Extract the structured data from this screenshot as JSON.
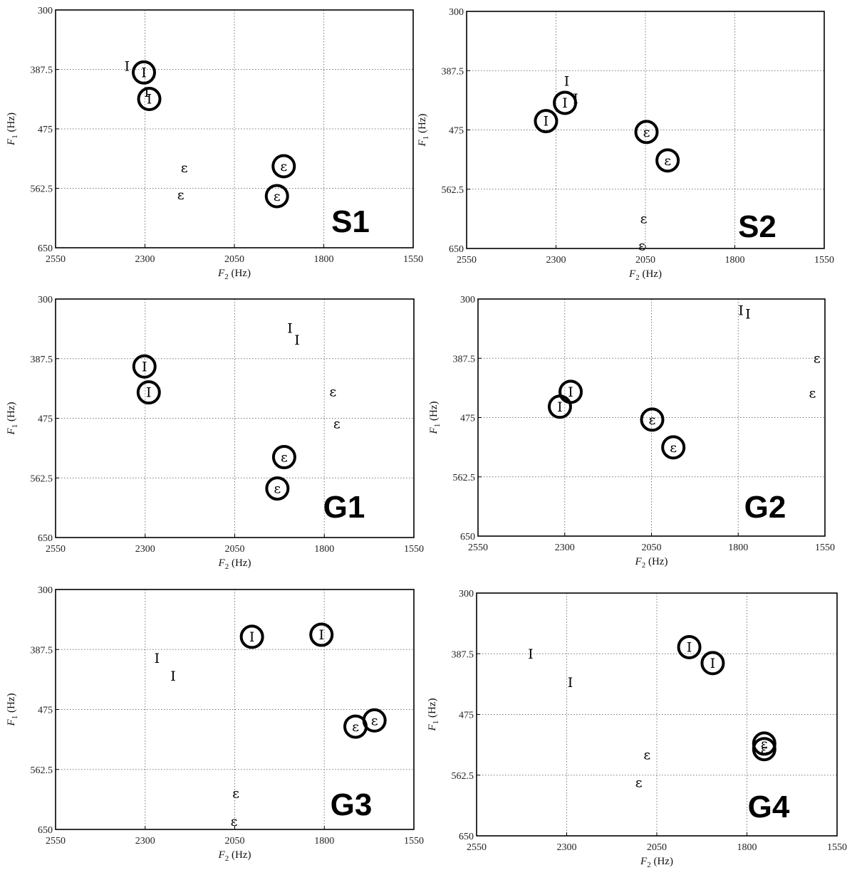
{
  "chart_data": [
    {
      "type": "scatter",
      "title": "S1",
      "xlabel": "F2 (Hz)",
      "ylabel": "F1 (Hz)",
      "xlim": [
        2550,
        1550
      ],
      "ylim": [
        650,
        300
      ],
      "xticks": [
        "2550",
        "2300",
        "2050",
        "1800",
        "1550"
      ],
      "yticks": [
        "300",
        "387.5",
        "475",
        "562.5",
        "650"
      ],
      "grid": true,
      "series": [
        {
          "symbol": "I",
          "circled": false,
          "points": [
            {
              "x": 2350,
              "y": 383
            },
            {
              "x": 2295,
              "y": 421
            }
          ]
        },
        {
          "symbol": "I",
          "circled": true,
          "points": [
            {
              "x": 2303,
              "y": 392
            },
            {
              "x": 2288,
              "y": 431
            }
          ]
        },
        {
          "symbol": "ε",
          "circled": false,
          "points": [
            {
              "x": 2190,
              "y": 532
            },
            {
              "x": 2200,
              "y": 572
            }
          ]
        },
        {
          "symbol": "ε",
          "circled": true,
          "points": [
            {
              "x": 1912,
              "y": 530
            },
            {
              "x": 1931,
              "y": 574
            }
          ]
        }
      ]
    },
    {
      "type": "scatter",
      "title": "S2",
      "xlabel": "F2 (Hz)",
      "ylabel": "F1 (Hz)",
      "xlim": [
        2550,
        1550
      ],
      "ylim": [
        650,
        300
      ],
      "xticks": [
        "2550",
        "2300",
        "2050",
        "1800",
        "1550"
      ],
      "yticks": [
        "300",
        "387.5",
        "475",
        "562.5",
        "650"
      ],
      "grid": true,
      "series": [
        {
          "symbol": "I",
          "circled": false,
          "points": [
            {
              "x": 2270,
              "y": 403
            },
            {
              "x": 2245,
              "y": 429
            }
          ]
        },
        {
          "symbol": "I",
          "circled": true,
          "points": [
            {
              "x": 2275,
              "y": 435
            },
            {
              "x": 2328,
              "y": 462
            }
          ]
        },
        {
          "symbol": "ε",
          "circled": false,
          "points": [
            {
              "x": 2055,
              "y": 606
            },
            {
              "x": 2060,
              "y": 646
            }
          ]
        },
        {
          "symbol": "ε",
          "circled": true,
          "points": [
            {
              "x": 2047,
              "y": 478
            },
            {
              "x": 1988,
              "y": 520
            }
          ]
        }
      ]
    },
    {
      "type": "scatter",
      "title": "G1",
      "xlabel": "F2 (Hz)",
      "ylabel": "F1 (Hz)",
      "xlim": [
        2550,
        1550
      ],
      "ylim": [
        650,
        300
      ],
      "xticks": [
        "2550",
        "2300",
        "2050",
        "1800",
        "1550"
      ],
      "yticks": [
        "300",
        "387.5",
        "475",
        "562.5",
        "650"
      ],
      "grid": true,
      "series": [
        {
          "symbol": "I",
          "circled": false,
          "points": [
            {
              "x": 1896,
              "y": 343
            },
            {
              "x": 1876,
              "y": 360
            }
          ]
        },
        {
          "symbol": "I",
          "circled": true,
          "points": [
            {
              "x": 2302,
              "y": 399
            },
            {
              "x": 2290,
              "y": 437
            }
          ]
        },
        {
          "symbol": "ε",
          "circled": false,
          "points": [
            {
              "x": 1776,
              "y": 436
            },
            {
              "x": 1765,
              "y": 483
            }
          ]
        },
        {
          "symbol": "ε",
          "circled": true,
          "points": [
            {
              "x": 1912,
              "y": 532
            },
            {
              "x": 1931,
              "y": 578
            }
          ]
        }
      ]
    },
    {
      "type": "scatter",
      "title": "G2",
      "xlabel": "F2 (Hz)",
      "ylabel": "F1 (Hz)",
      "xlim": [
        2550,
        1550
      ],
      "ylim": [
        650,
        300
      ],
      "xticks": [
        "2550",
        "2300",
        "2050",
        "1800",
        "1550"
      ],
      "yticks": [
        "300",
        "387.5",
        "475",
        "562.5",
        "650"
      ],
      "grid": true,
      "series": [
        {
          "symbol": "I",
          "circled": false,
          "points": [
            {
              "x": 1792,
              "y": 317
            },
            {
              "x": 1772,
              "y": 322
            }
          ]
        },
        {
          "symbol": "I",
          "circled": true,
          "points": [
            {
              "x": 2283,
              "y": 437
            },
            {
              "x": 2314,
              "y": 459
            }
          ]
        },
        {
          "symbol": "ε",
          "circled": false,
          "points": [
            {
              "x": 1573,
              "y": 387
            },
            {
              "x": 1586,
              "y": 439
            }
          ]
        },
        {
          "symbol": "ε",
          "circled": true,
          "points": [
            {
              "x": 2048,
              "y": 478
            },
            {
              "x": 1987,
              "y": 519
            }
          ]
        }
      ]
    },
    {
      "type": "scatter",
      "title": "G3",
      "xlabel": "F2 (Hz)",
      "ylabel": "F1 (Hz)",
      "xlim": [
        2550,
        1550
      ],
      "ylim": [
        650,
        300
      ],
      "xticks": [
        "2550",
        "2300",
        "2050",
        "1800",
        "1550"
      ],
      "yticks": [
        "300",
        "387.5",
        "475",
        "562.5",
        "650"
      ],
      "grid": true,
      "series": [
        {
          "symbol": "I",
          "circled": false,
          "points": [
            {
              "x": 2267,
              "y": 400
            },
            {
              "x": 2222,
              "y": 426
            }
          ]
        },
        {
          "symbol": "I",
          "circled": true,
          "points": [
            {
              "x": 2002,
              "y": 369
            },
            {
              "x": 1808,
              "y": 366
            }
          ]
        },
        {
          "symbol": "ε",
          "circled": false,
          "points": [
            {
              "x": 2047,
              "y": 597
            },
            {
              "x": 2052,
              "y": 638
            }
          ]
        },
        {
          "symbol": "ε",
          "circled": true,
          "points": [
            {
              "x": 1713,
              "y": 500
            },
            {
              "x": 1660,
              "y": 491
            }
          ]
        }
      ]
    },
    {
      "type": "scatter",
      "title": "G4",
      "xlabel": "F2 (Hz)",
      "ylabel": "F1 (Hz)",
      "xlim": [
        2550,
        1550
      ],
      "ylim": [
        650,
        300
      ],
      "xticks": [
        "2550",
        "2300",
        "2050",
        "1800",
        "1550"
      ],
      "yticks": [
        "300",
        "387.5",
        "475",
        "562.5",
        "650"
      ],
      "grid": true,
      "series": [
        {
          "symbol": "I",
          "circled": false,
          "points": [
            {
              "x": 2400,
              "y": 388
            },
            {
              "x": 2290,
              "y": 429
            }
          ]
        },
        {
          "symbol": "I",
          "circled": true,
          "points": [
            {
              "x": 1960,
              "y": 378
            },
            {
              "x": 1895,
              "y": 401
            }
          ]
        },
        {
          "symbol": "ε",
          "circled": false,
          "points": [
            {
              "x": 2077,
              "y": 533
            },
            {
              "x": 2100,
              "y": 573
            }
          ]
        },
        {
          "symbol": "ε",
          "circled": true,
          "points": [
            {
              "x": 1752,
              "y": 517
            },
            {
              "x": 1752,
              "y": 525
            }
          ]
        }
      ]
    }
  ]
}
